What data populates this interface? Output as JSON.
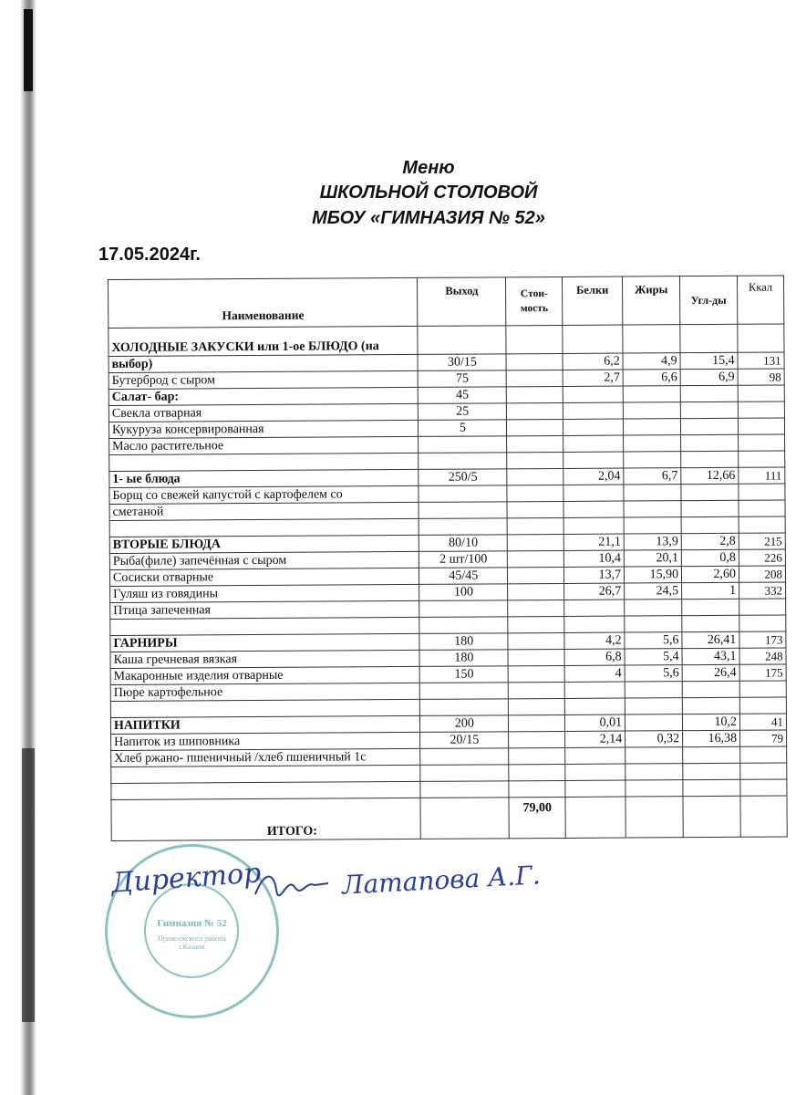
{
  "header": {
    "line1": "Меню",
    "line2": "ШКОЛЬНОЙ СТОЛОВОЙ",
    "line3": "МБОУ «ГИМНАЗИЯ № 52»",
    "date": "17.05.2024г."
  },
  "table": {
    "columns": [
      "Наименование",
      "Выход",
      "Стои-мость",
      "Белки",
      "Жиры",
      "Угл-ды",
      "Ккал"
    ],
    "rows": [
      {
        "name": "ХОЛОДНЫЕ ЗАКУСКИ или 1-ое БЛЮДО (на",
        "bold": true,
        "v": [
          "",
          "",
          "",
          "",
          "",
          ""
        ]
      },
      {
        "name": "выбор)",
        "bold": true,
        "v": [
          "30/15",
          "",
          "6,2",
          "4,9",
          "15,4",
          "131"
        ]
      },
      {
        "name": "Бутерброд с сыром",
        "v": [
          "75",
          "",
          "2,7",
          "6,6",
          "6,9",
          "98"
        ]
      },
      {
        "name": "Салат- бар:",
        "bold": true,
        "v": [
          "45",
          "",
          "",
          "",
          "",
          ""
        ]
      },
      {
        "name": "Свекла отварная",
        "v": [
          "25",
          "",
          "",
          "",
          "",
          ""
        ]
      },
      {
        "name": "Кукуруза консервированная",
        "v": [
          "5",
          "",
          "",
          "",
          "",
          ""
        ]
      },
      {
        "name": "Масло растительное",
        "v": [
          "",
          "",
          "",
          "",
          "",
          ""
        ]
      },
      {
        "name": "",
        "v": [
          "",
          "",
          "",
          "",
          "",
          ""
        ]
      },
      {
        "name": "1-   ые блюда",
        "bold": true,
        "v": [
          "250/5",
          "",
          "2,04",
          "6,7",
          "12,66",
          "111"
        ]
      },
      {
        "name": "Борщ со свежей капустой с картофелем со",
        "v": [
          "",
          "",
          "",
          "",
          "",
          ""
        ]
      },
      {
        "name": "сметаной",
        "v": [
          "",
          "",
          "",
          "",
          "",
          ""
        ]
      },
      {
        "name": "",
        "v": [
          "",
          "",
          "",
          "",
          "",
          ""
        ]
      },
      {
        "name": "ВТОРЫЕ БЛЮДА",
        "bold": true,
        "v": [
          "80/10",
          "",
          "21,1",
          "13,9",
          "2,8",
          "215"
        ]
      },
      {
        "name": "Рыба(филе) запечённая с сыром",
        "v": [
          "2 шт/100",
          "",
          "10,4",
          "20,1",
          "0,8",
          "226"
        ]
      },
      {
        "name": "Сосиски отварные",
        "v": [
          "45/45",
          "",
          "13,7",
          "15,90",
          "2,60",
          "208"
        ]
      },
      {
        "name": "Гуляш из говядины",
        "v": [
          "100",
          "",
          "26,7",
          "24,5",
          "1",
          "332"
        ]
      },
      {
        "name": "Птица запеченная",
        "v": [
          "",
          "",
          "",
          "",
          "",
          ""
        ]
      },
      {
        "name": "",
        "v": [
          "",
          "",
          "",
          "",
          "",
          ""
        ]
      },
      {
        "name": "ГАРНИРЫ",
        "bold": true,
        "v": [
          "180",
          "",
          "4,2",
          "5,6",
          "26,41",
          "173"
        ]
      },
      {
        "name": "Каша гречневая вязкая",
        "v": [
          "180",
          "",
          "6,8",
          "5,4",
          "43,1",
          "248"
        ]
      },
      {
        "name": "Макаронные изделия отварные",
        "v": [
          "150",
          "",
          "4",
          "5,6",
          "26,4",
          "175"
        ]
      },
      {
        "name": "Пюре картофельное",
        "v": [
          "",
          "",
          "",
          "",
          "",
          ""
        ]
      },
      {
        "name": "",
        "v": [
          "",
          "",
          "",
          "",
          "",
          ""
        ]
      },
      {
        "name": "НАПИТКИ",
        "bold": true,
        "v": [
          "200",
          "",
          "0,01",
          "",
          "10,2",
          "41"
        ]
      },
      {
        "name": "Напиток из шиповника",
        "v": [
          "20/15",
          "",
          "2,14",
          "0,32",
          "16,38",
          "79"
        ]
      },
      {
        "name": "Хлеб ржано- пшеничный /хлеб пшеничный 1с",
        "v": [
          "",
          "",
          "",
          "",
          "",
          ""
        ]
      },
      {
        "name": "",
        "v": [
          "",
          "",
          "",
          "",
          "",
          ""
        ]
      },
      {
        "name": "",
        "v": [
          "",
          "",
          "",
          "",
          "",
          ""
        ]
      }
    ],
    "total": {
      "label": "ИТОГО:",
      "cost": "79,00"
    }
  },
  "signature": {
    "role": "Директор",
    "name": "Латапова А.Г."
  },
  "stamp": {
    "text": "Гимназия № 52",
    "district": "Приволжского района г.Казани"
  },
  "colors": {
    "ink": "#2a3f9a",
    "stamp": "#5aa9a4"
  }
}
